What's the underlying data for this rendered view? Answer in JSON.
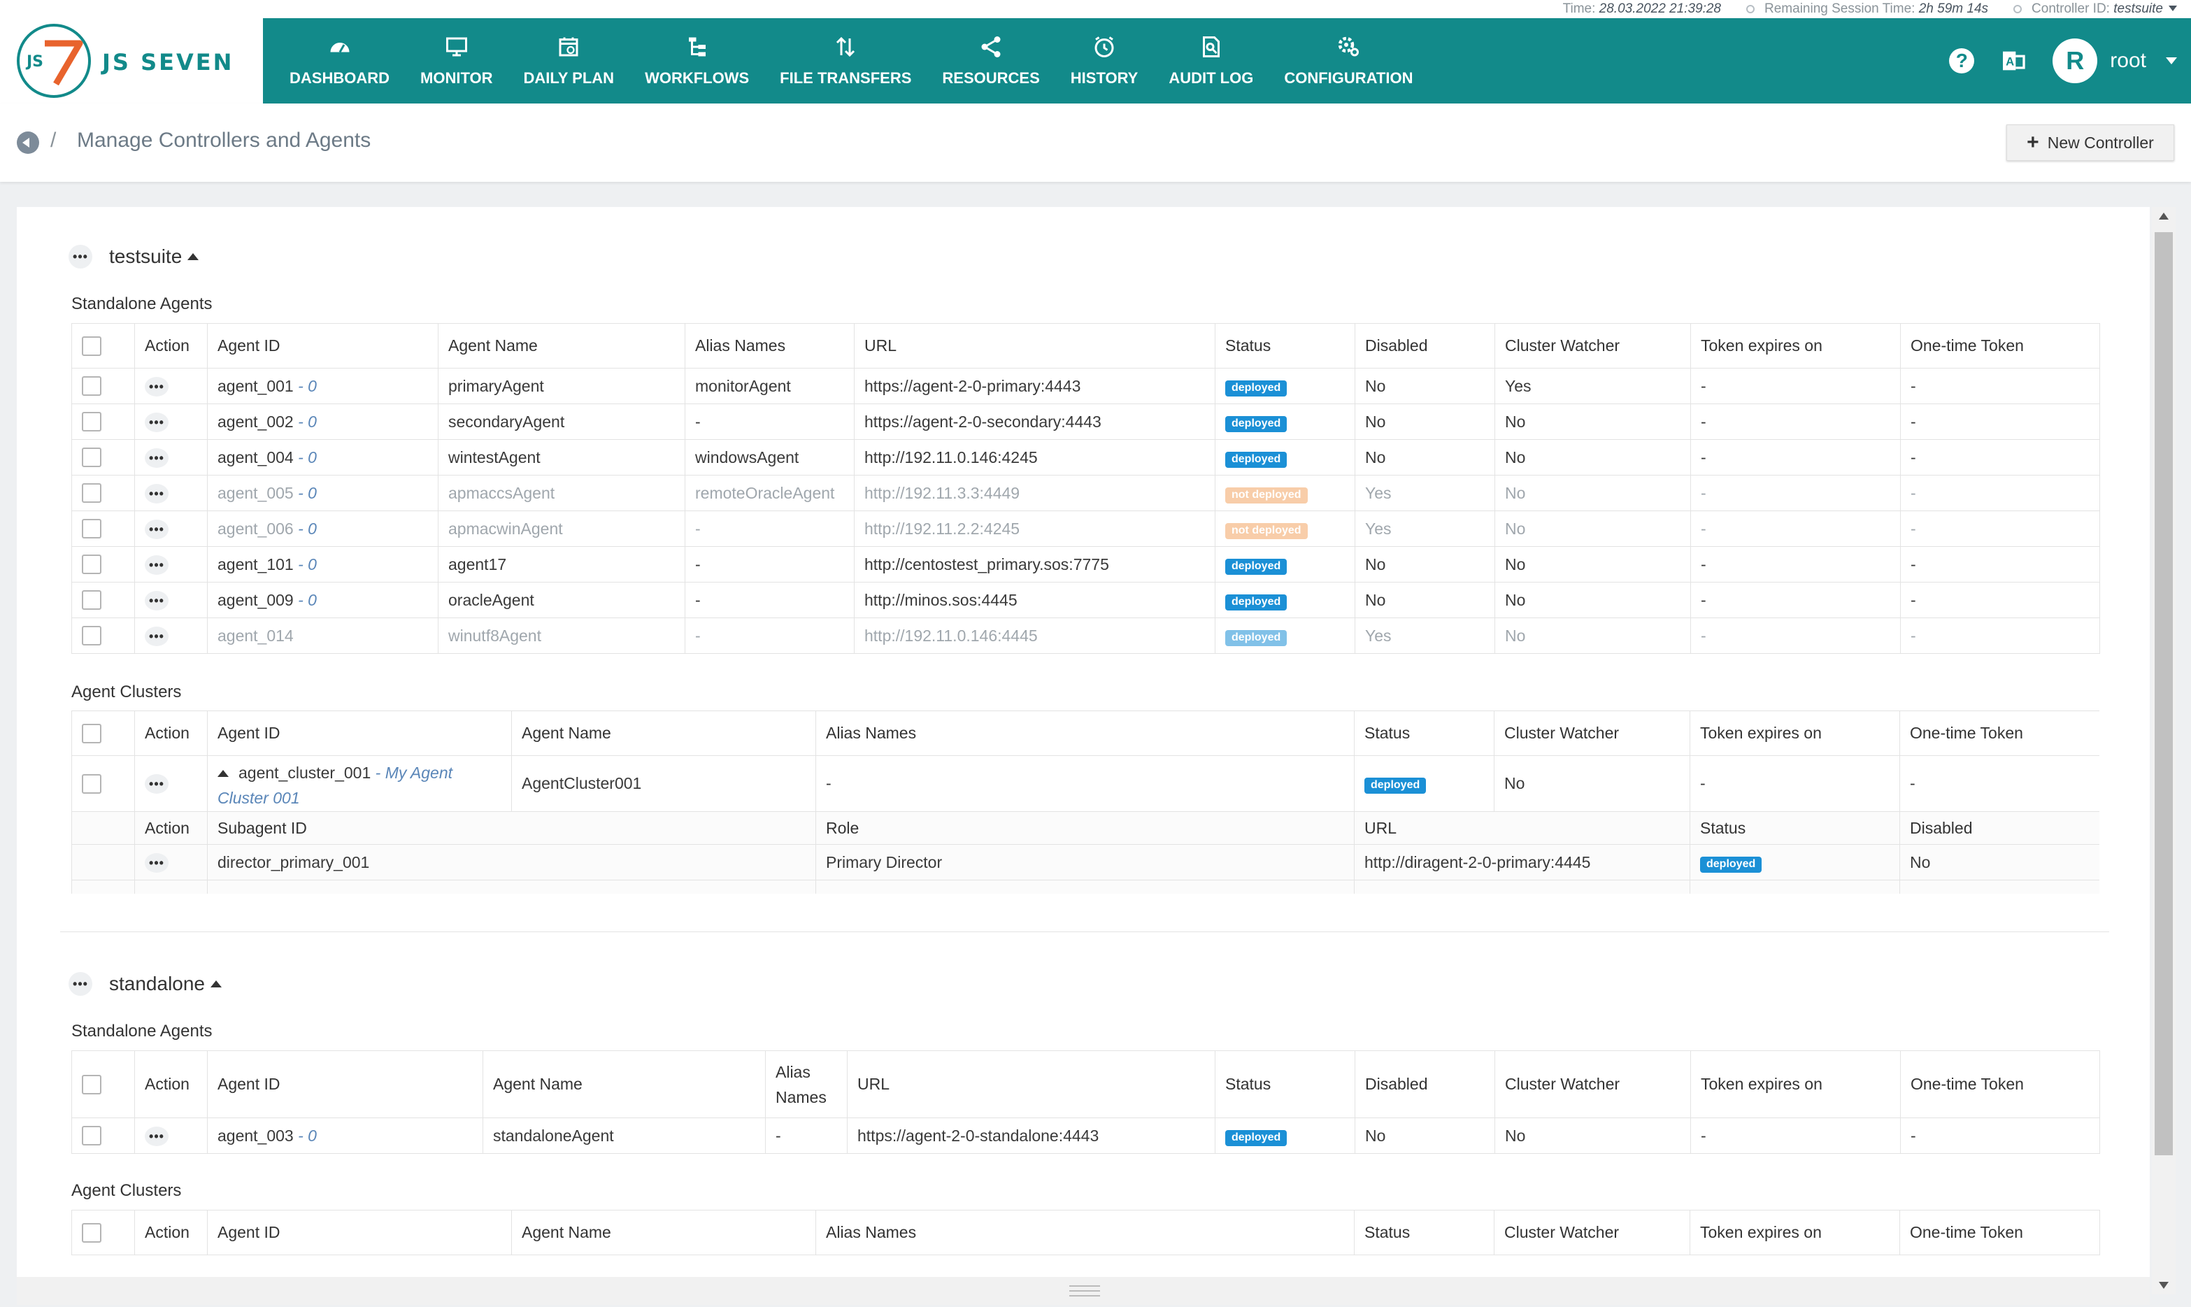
{
  "statusbar": {
    "time_label": "Time:",
    "time_value": "28.03.2022 21:39:28",
    "session_label": "Remaining Session Time:",
    "session_value": "2h 59m 14s",
    "controller_label": "Controller ID:",
    "controller_value": "testsuite"
  },
  "logo": {
    "mark": "JS",
    "text": "JS SEVEN"
  },
  "nav": [
    {
      "label": "DASHBOARD",
      "icon": "dashboard-icon"
    },
    {
      "label": "MONITOR",
      "icon": "monitor-icon"
    },
    {
      "label": "DAILY PLAN",
      "icon": "calendar-icon"
    },
    {
      "label": "WORKFLOWS",
      "icon": "workflow-icon"
    },
    {
      "label": "FILE TRANSFERS",
      "icon": "transfer-icon"
    },
    {
      "label": "RESOURCES",
      "icon": "share-icon"
    },
    {
      "label": "HISTORY",
      "icon": "clock-icon"
    },
    {
      "label": "AUDIT LOG",
      "icon": "audit-icon"
    },
    {
      "label": "CONFIGURATION",
      "icon": "gear-icon"
    }
  ],
  "user": {
    "initial": "R",
    "name": "root",
    "help": "?"
  },
  "breadcrumb": {
    "sep": "/",
    "title": "Manage Controllers and Agents"
  },
  "new_controller_label": "New Controller",
  "controllers": [
    {
      "name": "testsuite",
      "standalone_title": "Standalone Agents",
      "clusters_title": "Agent Clusters",
      "standalone_headers": [
        "Action",
        "Agent ID",
        "Agent Name",
        "Alias Names",
        "URL",
        "Status",
        "Disabled",
        "Cluster Watcher",
        "Token expires on",
        "One-time Token"
      ],
      "standalone_rows": [
        {
          "id": "agent_001",
          "idx": " - 0",
          "name": "primaryAgent",
          "alias": "monitorAgent",
          "url": "https://agent-2-0-primary:4443",
          "status": "deployed",
          "disabled": "No",
          "watcher": "Yes",
          "token": "-",
          "ott": "-"
        },
        {
          "id": "agent_002",
          "idx": " - 0",
          "name": "secondaryAgent",
          "alias": "-",
          "url": "https://agent-2-0-secondary:4443",
          "status": "deployed",
          "disabled": "No",
          "watcher": "No",
          "token": "-",
          "ott": "-"
        },
        {
          "id": "agent_004",
          "idx": " - 0",
          "name": "wintestAgent",
          "alias": "windowsAgent",
          "url": "http://192.11.0.146:4245",
          "status": "deployed",
          "disabled": "No",
          "watcher": "No",
          "token": "-",
          "ott": "-"
        },
        {
          "id": "agent_005",
          "idx": " - 0",
          "name": "apmaccsAgent",
          "alias": "remoteOracleAgent",
          "url": "http://192.11.3.3:4449",
          "status": "not deployed",
          "disabled": "Yes",
          "watcher": "No",
          "token": "-",
          "ott": "-"
        },
        {
          "id": "agent_006",
          "idx": " - 0",
          "name": "apmacwinAgent",
          "alias": "-",
          "url": "http://192.11.2.2:4245",
          "status": "not deployed",
          "disabled": "Yes",
          "watcher": "No",
          "token": "-",
          "ott": "-"
        },
        {
          "id": "agent_101",
          "idx": " - 0",
          "name": "agent17",
          "alias": "-",
          "url": "http://centostest_primary.sos:7775",
          "status": "deployed",
          "disabled": "No",
          "watcher": "No",
          "token": "-",
          "ott": "-"
        },
        {
          "id": "agent_009",
          "idx": " - 0",
          "name": "oracleAgent",
          "alias": "-",
          "url": "http://minos.sos:4445",
          "status": "deployed",
          "disabled": "No",
          "watcher": "No",
          "token": "-",
          "ott": "-"
        },
        {
          "id": "agent_014",
          "idx": "",
          "name": "winutf8Agent",
          "alias": "-",
          "url": "http://192.11.0.146:4445",
          "status": "deployed",
          "disabled": "Yes",
          "watcher": "No",
          "token": "-",
          "ott": "-"
        }
      ],
      "cluster_headers": [
        "Action",
        "Agent ID",
        "Agent Name",
        "Alias Names",
        "Status",
        "Cluster Watcher",
        "Token expires on",
        "One-time Token"
      ],
      "cluster_rows": [
        {
          "id": "agent_cluster_001",
          "title_sep": " - ",
          "title": "My Agent Cluster 001",
          "name": "AgentCluster001",
          "alias": "-",
          "status": "deployed",
          "watcher": "No",
          "token": "-",
          "ott": "-"
        }
      ],
      "sub_headers": [
        "Action",
        "Subagent ID",
        "Role",
        "URL",
        "Status",
        "Disabled"
      ],
      "sub_rows": [
        {
          "id": "director_primary_001",
          "role": "Primary Director",
          "url": "http://diragent-2-0-primary:4445",
          "status": "deployed",
          "disabled": "No"
        }
      ]
    },
    {
      "name": "standalone",
      "standalone_title": "Standalone Agents",
      "clusters_title": "Agent Clusters",
      "standalone_headers": [
        "Action",
        "Agent ID",
        "Agent Name",
        "Alias Names",
        "URL",
        "Status",
        "Disabled",
        "Cluster Watcher",
        "Token expires on",
        "One-time Token"
      ],
      "standalone_rows": [
        {
          "id": "agent_003",
          "idx": " - 0",
          "name": "standaloneAgent",
          "alias": "-",
          "url": "https://agent-2-0-standalone:4443",
          "status": "deployed",
          "disabled": "No",
          "watcher": "No",
          "token": "-",
          "ott": "-"
        }
      ],
      "cluster_headers": [
        "Action",
        "Agent ID",
        "Agent Name",
        "Alias Names",
        "Status",
        "Cluster Watcher",
        "Token expires on",
        "One-time Token"
      ]
    }
  ],
  "colors": {
    "header": "#128a8a",
    "deployed": "#1b90d6",
    "not_deployed": "#f3a664"
  }
}
